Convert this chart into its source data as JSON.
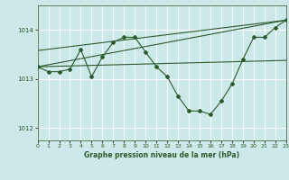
{
  "background_color": "#cce8e8",
  "grid_color": "#ffffff",
  "line_color": "#2d5a2d",
  "title": "Graphe pression niveau de la mer (hPa)",
  "xlim": [
    0,
    23
  ],
  "ylim": [
    1011.75,
    1014.5
  ],
  "yticks": [
    1012,
    1013,
    1014
  ],
  "xticks": [
    0,
    1,
    2,
    3,
    4,
    5,
    6,
    7,
    8,
    9,
    10,
    11,
    12,
    13,
    14,
    15,
    16,
    17,
    18,
    19,
    20,
    21,
    22,
    23
  ],
  "series_main": {
    "x": [
      0,
      1,
      2,
      3,
      4,
      5,
      6,
      7,
      8,
      9,
      10,
      11,
      12,
      13,
      14,
      15,
      16,
      17,
      18,
      19,
      20,
      21,
      22,
      23
    ],
    "y": [
      1013.25,
      1013.15,
      1013.15,
      1013.2,
      1013.6,
      1013.05,
      1013.45,
      1013.75,
      1013.85,
      1013.85,
      1013.55,
      1013.25,
      1013.05,
      1012.65,
      1012.35,
      1012.35,
      1012.28,
      1012.55,
      1012.9,
      1013.4,
      1013.85,
      1013.85,
      1014.05,
      1014.2
    ]
  },
  "series_line1": {
    "x": [
      0,
      23
    ],
    "y": [
      1013.25,
      1013.38
    ]
  },
  "series_line2": {
    "x": [
      0,
      23
    ],
    "y": [
      1013.25,
      1014.2
    ]
  },
  "series_line3": {
    "x": [
      0,
      23
    ],
    "y": [
      1013.58,
      1014.2
    ]
  }
}
